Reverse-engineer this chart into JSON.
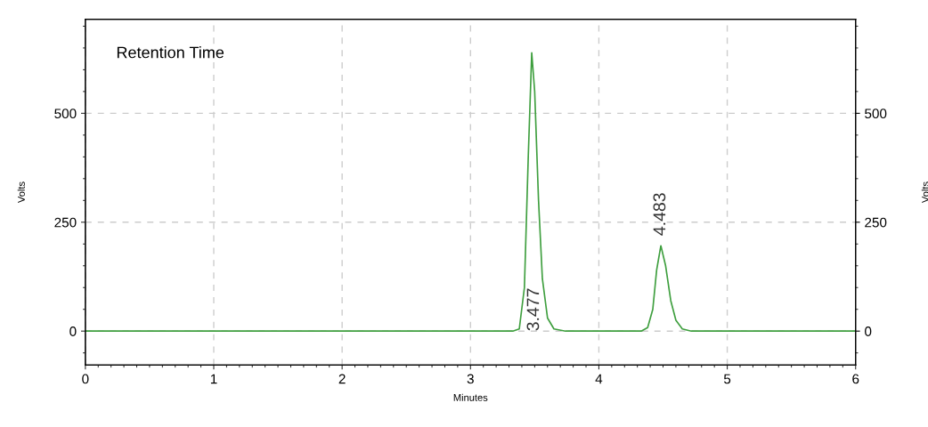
{
  "chart_data": {
    "type": "line",
    "title": "Retention Time",
    "xlabel": "Minutes",
    "ylabel": "Volts",
    "y2label": "Volts",
    "x": [
      0,
      1,
      2,
      3,
      3.33,
      3.38,
      3.42,
      3.45,
      3.477,
      3.5,
      3.53,
      3.56,
      3.6,
      3.65,
      3.74,
      4,
      4.33,
      4.38,
      4.42,
      4.45,
      4.483,
      4.52,
      4.56,
      4.6,
      4.65,
      4.72,
      5,
      6
    ],
    "series": [
      {
        "color": "#3f9f3f",
        "values": [
          0,
          0,
          0,
          0,
          0,
          5,
          100,
          400,
          639,
          550,
          300,
          120,
          30,
          5,
          0,
          0,
          0,
          8,
          50,
          140,
          196,
          150,
          70,
          25,
          5,
          0,
          0,
          0
        ]
      }
    ],
    "annotations": [
      "3.477",
      {
        "text": "4.483",
        "x": 4.483,
        "y": 196
      }
    ],
    "xlim": [
      0,
      6
    ],
    "xticks": [
      0,
      1,
      2,
      3,
      4,
      5,
      6
    ],
    "ylim": [
      -78,
      716
    ],
    "yticks": [
      0,
      250,
      500
    ],
    "y2lim": [
      -78,
      716
    ],
    "y2ticks": [
      0,
      250,
      500
    ],
    "grid": true,
    "line_style": "solid"
  }
}
